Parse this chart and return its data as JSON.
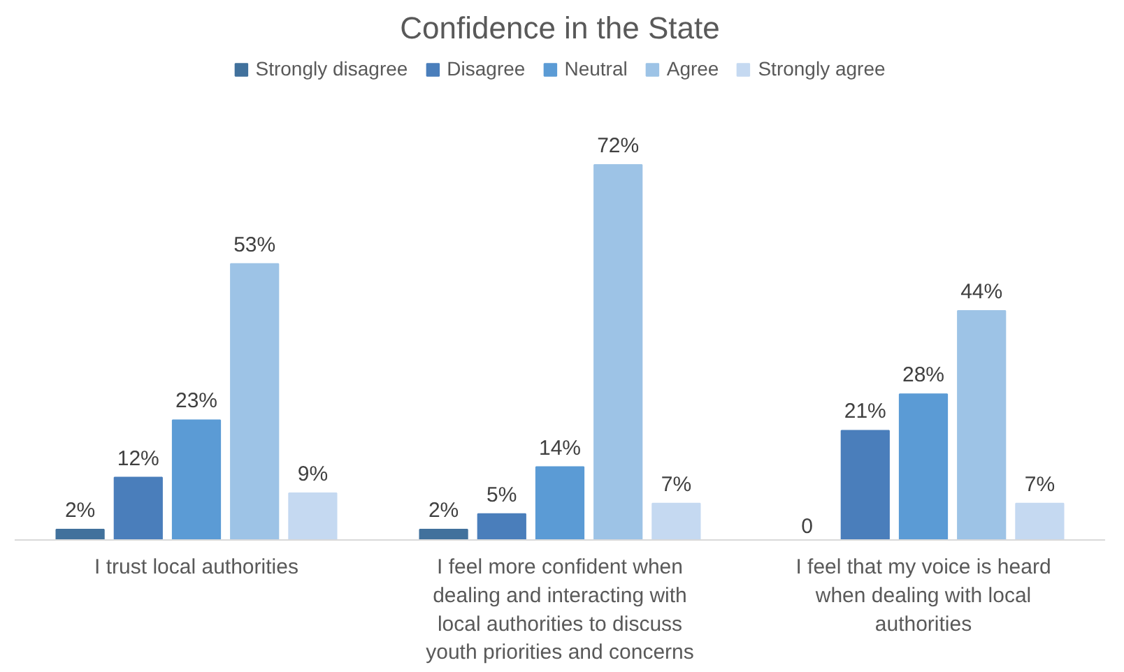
{
  "chart_data": {
    "type": "bar",
    "title": "Confidence in the State",
    "categories": [
      "I trust local authorities",
      "I feel more confident when dealing and interacting with local authorities to discuss youth priorities and concerns",
      "I feel that my voice is heard when dealing with local authorities"
    ],
    "series": [
      {
        "name": "Strongly disagree",
        "color": "#41719c",
        "values": [
          2,
          2,
          0
        ],
        "value_labels": [
          "2%",
          "2%",
          "0"
        ]
      },
      {
        "name": "Disagree",
        "color": "#4a7ebb",
        "values": [
          12,
          5,
          21
        ],
        "value_labels": [
          "12%",
          "5%",
          "21%"
        ]
      },
      {
        "name": "Neutral",
        "color": "#5b9bd5",
        "values": [
          23,
          14,
          28
        ],
        "value_labels": [
          "23%",
          "14%",
          "28%"
        ]
      },
      {
        "name": "Agree",
        "color": "#9dc3e6",
        "values": [
          53,
          72,
          44
        ],
        "value_labels": [
          "53%",
          "72%",
          "44%"
        ]
      },
      {
        "name": "Strongly agree",
        "color": "#c5d9f1",
        "values": [
          9,
          7,
          7
        ],
        "value_labels": [
          "9%",
          "7%",
          "7%"
        ]
      }
    ],
    "legend": "top"
  }
}
